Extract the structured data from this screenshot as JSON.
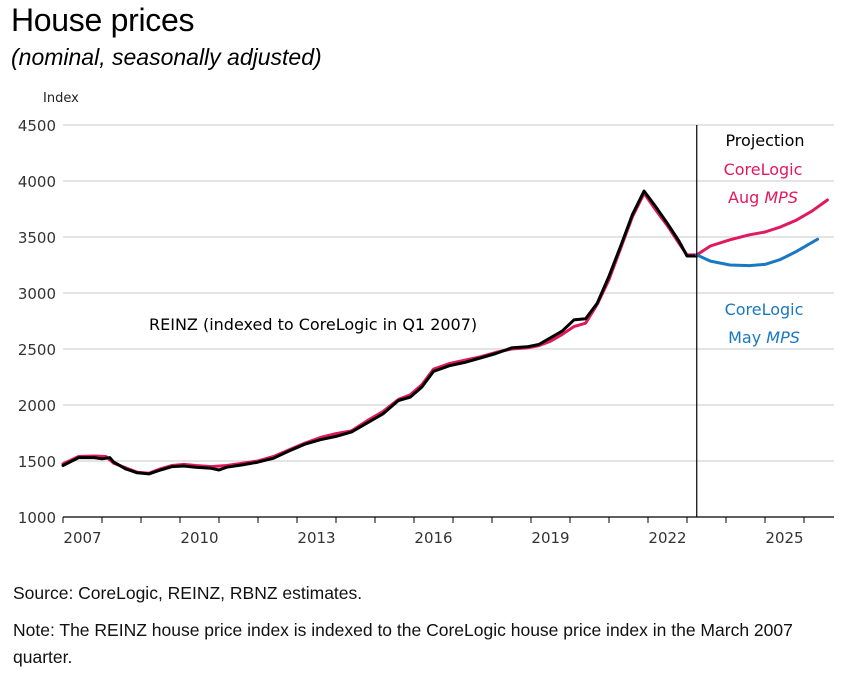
{
  "header": {
    "title": "House prices",
    "subtitle": "(nominal, seasonally adjusted)"
  },
  "footer": {
    "source": "Source: CoreLogic, REINZ, RBNZ estimates.",
    "note": "Note: The REINZ house price index is indexed to the CoreLogic house price index in the March 2007 quarter."
  },
  "chart_data": {
    "type": "line",
    "title": "House prices",
    "subtitle": "(nominal, seasonally adjusted)",
    "xlabel": "",
    "ylabel": "Index",
    "xlim": [
      2007,
      2026.75
    ],
    "ylim": [
      1000,
      4500
    ],
    "yticks": [
      1000,
      1500,
      2000,
      2500,
      3000,
      3500,
      4000,
      4500
    ],
    "xticks": [
      2007,
      2008,
      2009,
      2010,
      2011,
      2012,
      2013,
      2014,
      2015,
      2016,
      2017,
      2018,
      2019,
      2020,
      2021,
      2022,
      2023,
      2024,
      2025,
      2026
    ],
    "xtick_labels": [
      "2007",
      "2010",
      "2013",
      "2016",
      "2019",
      "2022",
      "2025"
    ],
    "grid": "horizontal",
    "projection_start": 2023.25,
    "annotations": {
      "reinz": "REINZ (indexed to CoreLogic in Q1 2007)",
      "projection": "Projection",
      "aug_line1": "CoreLogic",
      "aug_line2": "Aug",
      "aug_italic": "MPS",
      "may_line1": "CoreLogic",
      "may_line2": "May",
      "may_italic": "MPS"
    },
    "colors": {
      "corelogic": "#e0195f",
      "reinz": "#000000",
      "may_mps": "#1a78c2",
      "grid": "#c8c8c8",
      "axis": "#000000"
    },
    "series": [
      {
        "name": "CoreLogic",
        "color": "#e0195f",
        "x": [
          2007.0,
          2007.4,
          2007.8,
          2008.1,
          2008.3,
          2008.6,
          2008.9,
          2009.2,
          2009.5,
          2009.8,
          2010.1,
          2010.4,
          2010.8,
          2011.2,
          2011.6,
          2012.0,
          2012.4,
          2012.8,
          2013.2,
          2013.6,
          2014.0,
          2014.4,
          2014.8,
          2015.2,
          2015.6,
          2015.9,
          2016.2,
          2016.5,
          2016.9,
          2017.3,
          2017.7,
          2018.1,
          2018.5,
          2018.9,
          2019.2,
          2019.5,
          2019.8,
          2020.1,
          2020.4,
          2020.7,
          2021.0,
          2021.3,
          2021.6,
          2021.9,
          2022.2,
          2022.5,
          2022.8,
          2023.0,
          2023.25
        ],
        "y": [
          1475,
          1540,
          1545,
          1540,
          1480,
          1440,
          1400,
          1390,
          1430,
          1460,
          1470,
          1460,
          1450,
          1460,
          1480,
          1500,
          1540,
          1600,
          1660,
          1710,
          1745,
          1770,
          1860,
          1940,
          2050,
          2090,
          2180,
          2320,
          2370,
          2400,
          2430,
          2470,
          2500,
          2510,
          2530,
          2570,
          2630,
          2700,
          2730,
          2900,
          3120,
          3400,
          3680,
          3890,
          3740,
          3600,
          3440,
          3340,
          3340
        ]
      },
      {
        "name": "REINZ (indexed to CoreLogic in Q1 2007)",
        "color": "#000000",
        "x": [
          2007.0,
          2007.4,
          2007.8,
          2008.0,
          2008.2,
          2008.3,
          2008.6,
          2008.9,
          2009.2,
          2009.5,
          2009.8,
          2010.1,
          2010.4,
          2010.8,
          2011.0,
          2011.2,
          2011.6,
          2012.0,
          2012.4,
          2012.8,
          2013.2,
          2013.6,
          2014.0,
          2014.4,
          2014.8,
          2015.2,
          2015.6,
          2015.9,
          2016.2,
          2016.5,
          2016.9,
          2017.3,
          2017.7,
          2018.1,
          2018.5,
          2018.9,
          2019.2,
          2019.5,
          2019.8,
          2020.1,
          2020.4,
          2020.7,
          2021.0,
          2021.3,
          2021.6,
          2021.9,
          2022.2,
          2022.5,
          2022.8,
          2023.0,
          2023.25
        ],
        "y": [
          1460,
          1530,
          1530,
          1520,
          1530,
          1490,
          1430,
          1395,
          1385,
          1420,
          1450,
          1455,
          1445,
          1435,
          1420,
          1445,
          1465,
          1490,
          1525,
          1590,
          1650,
          1690,
          1720,
          1760,
          1840,
          1920,
          2040,
          2070,
          2160,
          2300,
          2350,
          2380,
          2420,
          2460,
          2510,
          2520,
          2540,
          2600,
          2660,
          2760,
          2770,
          2910,
          3150,
          3420,
          3700,
          3910,
          3770,
          3620,
          3460,
          3330,
          3330
        ]
      },
      {
        "name": "CoreLogic Aug MPS (projection)",
        "color": "#e0195f",
        "x": [
          2023.25,
          2023.6,
          2024.1,
          2024.6,
          2025.0,
          2025.4,
          2025.8,
          2026.2,
          2026.6
        ],
        "y": [
          3340,
          3420,
          3475,
          3520,
          3545,
          3590,
          3650,
          3730,
          3830
        ]
      },
      {
        "name": "CoreLogic May MPS (projection)",
        "color": "#1a78c2",
        "x": [
          2023.25,
          2023.6,
          2024.1,
          2024.6,
          2025.0,
          2025.4,
          2025.8,
          2026.0,
          2026.35
        ],
        "y": [
          3340,
          3285,
          3250,
          3245,
          3255,
          3300,
          3370,
          3410,
          3480
        ]
      }
    ]
  }
}
